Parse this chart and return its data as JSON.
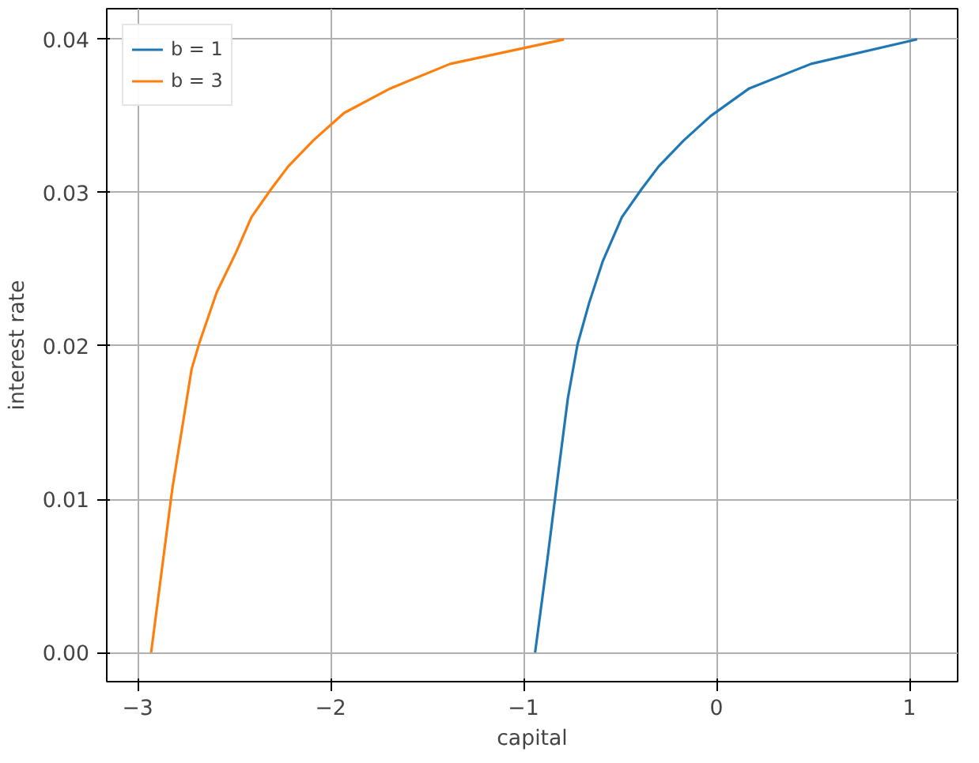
{
  "chart_data": {
    "type": "line",
    "xlabel": "capital",
    "ylabel": "interest rate",
    "xlim": [
      -3.16,
      1.25
    ],
    "ylim": [
      -0.0019,
      0.042
    ],
    "xticks": [
      {
        "value": -3,
        "label": "−3"
      },
      {
        "value": -2,
        "label": "−2"
      },
      {
        "value": -1,
        "label": "−1"
      },
      0,
      1
    ],
    "yticks": [
      {
        "value": 0,
        "label": "0.00"
      },
      {
        "value": 0.01,
        "label": "0.01"
      },
      {
        "value": 0.02,
        "label": "0.02"
      },
      {
        "value": 0.03,
        "label": "0.03"
      },
      {
        "value": 0.04,
        "label": "0.04"
      }
    ],
    "grid": true,
    "legend": "top left",
    "line_style": "solid",
    "series": [
      {
        "name": "b = 1",
        "color": "#1f77b4",
        "x": [
          -0.94,
          -0.88,
          -0.82,
          -0.77,
          -0.72,
          -0.66,
          -0.59,
          -0.49,
          -0.39,
          -0.3,
          -0.17,
          -0.03,
          0.17,
          0.49,
          1.04
        ],
        "values": [
          0,
          0.0057,
          0.0117,
          0.0166,
          0.0201,
          0.0228,
          0.0255,
          0.0284,
          0.0302,
          0.0317,
          0.0334,
          0.035,
          0.0368,
          0.0384,
          0.04
        ]
      },
      {
        "name": "b = 3",
        "color": "#ff7f0e",
        "x": [
          -2.93,
          -2.82,
          -2.72,
          -2.68,
          -2.59,
          -2.49,
          -2.41,
          -2.31,
          -2.22,
          -2.09,
          -1.93,
          -1.69,
          -1.38,
          -0.79
        ],
        "values": [
          0,
          0.0107,
          0.0185,
          0.0202,
          0.0235,
          0.0261,
          0.0284,
          0.0302,
          0.0317,
          0.0334,
          0.0352,
          0.0368,
          0.0384,
          0.04
        ]
      }
    ]
  }
}
